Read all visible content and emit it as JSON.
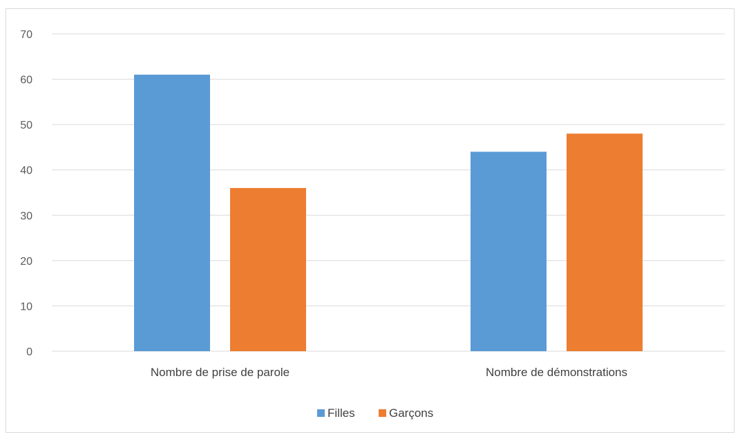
{
  "chart_data": {
    "type": "bar",
    "title": "",
    "xlabel": "",
    "ylabel": "",
    "categories": [
      "Nombre de prise de parole",
      "Nombre de démonstrations"
    ],
    "series": [
      {
        "name": "Filles",
        "values": [
          61,
          44
        ],
        "color": "#5b9bd5"
      },
      {
        "name": "Garçons",
        "values": [
          36,
          48
        ],
        "color": "#ed7d31"
      }
    ],
    "ylim": [
      0,
      70
    ],
    "yticks": [
      0,
      10,
      20,
      30,
      40,
      50,
      60,
      70
    ],
    "grid": true,
    "legend_position": "bottom"
  }
}
